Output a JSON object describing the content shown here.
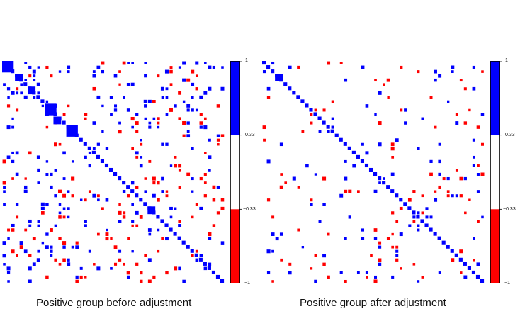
{
  "colors": {
    "positive": "#0000ff",
    "negative": "#ff0000",
    "neutral": "#ffffff"
  },
  "chart_data": [
    {
      "type": "heatmap",
      "caption": "Positive group before adjustment",
      "matrix_size": 52,
      "value_range": [
        -1,
        1
      ],
      "colorbar": {
        "ticks": [
          "1",
          "0.33",
          "−0.33",
          "−1"
        ],
        "bins": [
          "-1 to -0.33",
          "-0.33 to 0.33",
          "0.33 to 1"
        ]
      },
      "grid": false,
      "blocks": [
        {
          "i": 0,
          "j": 0,
          "size": 3
        },
        {
          "i": 3,
          "j": 3,
          "size": 2
        },
        {
          "i": 6,
          "j": 6,
          "size": 2
        },
        {
          "i": 10,
          "j": 10,
          "size": 3
        },
        {
          "i": 13,
          "j": 12,
          "size": 2
        },
        {
          "i": 15,
          "j": 15,
          "size": 3
        },
        {
          "i": 34,
          "j": 34,
          "size": 2
        }
      ],
      "density": 0.14,
      "neg_fraction": 0.45,
      "seed": 17
    },
    {
      "type": "heatmap",
      "caption": "Positive group after adjustment",
      "matrix_size": 52,
      "value_range": [
        -1,
        1
      ],
      "colorbar": {
        "ticks": [
          "1",
          "0.33",
          "−0.33",
          "−1"
        ],
        "bins": [
          "-1 to -0.33",
          "-0.33 to 0.33",
          "0.33 to 1"
        ]
      },
      "grid": false,
      "blocks": [
        {
          "i": 3,
          "j": 3,
          "size": 2
        }
      ],
      "density": 0.07,
      "neg_fraction": 0.5,
      "seed": 91
    }
  ]
}
